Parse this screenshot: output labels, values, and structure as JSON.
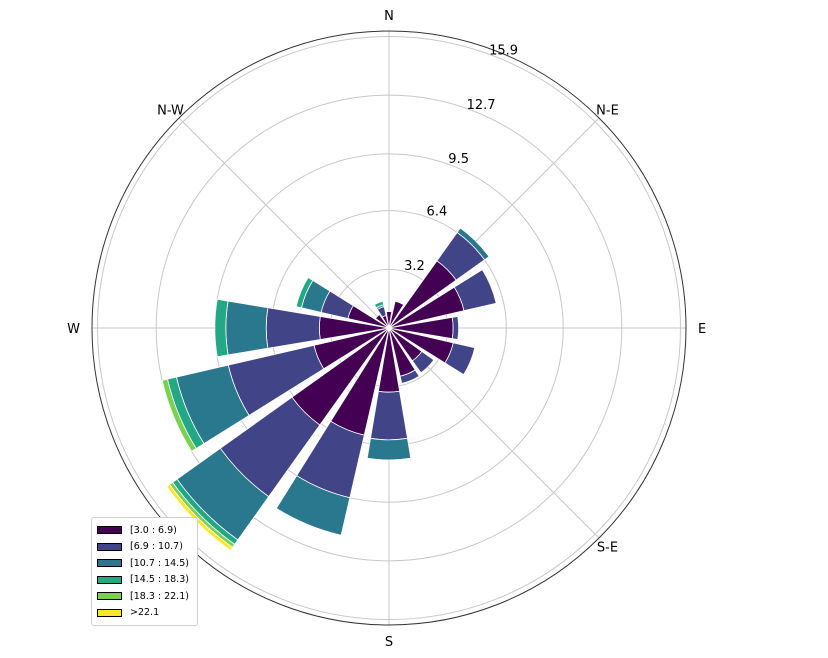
{
  "chart_data": {
    "type": "windrose",
    "rlabels": [
      "3.2",
      "6.4",
      "9.5",
      "12.7",
      "15.9"
    ],
    "rlabel_values": [
      3.2,
      6.4,
      9.5,
      12.7,
      15.9
    ],
    "rmax": 16.2,
    "direction_labels": [
      "N",
      "N-E",
      "E",
      "S-E",
      "S",
      "S-W",
      "W",
      "N-W"
    ],
    "direction_angles": [
      0,
      45,
      90,
      135,
      180,
      225,
      270,
      315
    ],
    "bins": [
      "[3.0 : 6.9)",
      "[6.9 : 10.7)",
      "[10.7 : 14.5)",
      "[14.5 : 18.3)",
      "[18.3 : 22.1)",
      ">22.1"
    ],
    "colors": [
      "#440154",
      "#414487",
      "#2a788e",
      "#22a884",
      "#7ad151",
      "#fde725"
    ],
    "sectors": [
      {
        "dir": 0,
        "values": [
          0.9
        ]
      },
      {
        "dir": 22.5,
        "values": [
          1.5
        ]
      },
      {
        "dir": 45,
        "values": [
          4.5,
          1.9,
          0.3
        ]
      },
      {
        "dir": 67.5,
        "values": [
          4.2,
          1.8
        ]
      },
      {
        "dir": 90,
        "values": [
          3.5,
          0.3
        ]
      },
      {
        "dir": 112.5,
        "values": [
          3.6,
          1.2
        ]
      },
      {
        "dir": 135,
        "values": [
          2.2,
          0.8
        ]
      },
      {
        "dir": 157.5,
        "values": [
          2.7,
          0.4
        ]
      },
      {
        "dir": 180,
        "values": [
          3.5,
          2.6,
          1.1
        ]
      },
      {
        "dir": 202.5,
        "values": [
          6.0,
          3.5,
          2.1
        ]
      },
      {
        "dir": 225,
        "values": [
          6.5,
          4.8,
          2.9,
          0.3,
          0.2,
          0.2
        ]
      },
      {
        "dir": 247.5,
        "values": [
          4.2,
          4.8,
          2.9,
          0.5,
          0.3
        ]
      },
      {
        "dir": 270,
        "values": [
          3.8,
          2.9,
          2.2,
          0.6
        ]
      },
      {
        "dir": 292.5,
        "values": [
          2.3,
          1.5,
          1.1,
          0.3
        ]
      },
      {
        "dir": 315,
        "values": [
          0.9
        ]
      },
      {
        "dir": 337.5,
        "values": [
          0.7,
          0.5,
          0.1,
          0.2
        ]
      }
    ]
  }
}
